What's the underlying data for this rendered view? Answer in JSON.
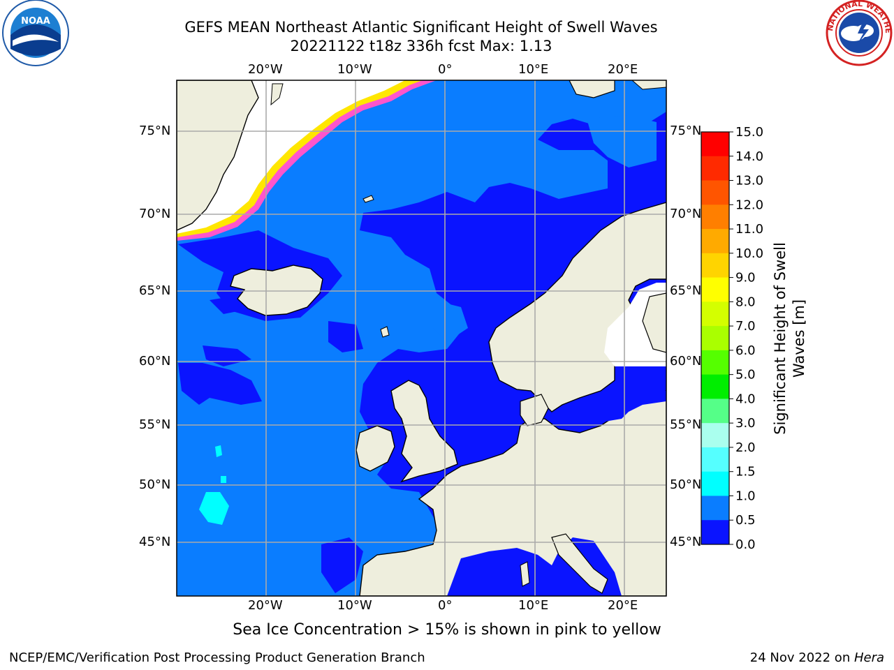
{
  "header": {
    "title_line1": "GEFS MEAN Northeast Atlantic Significant Height of Swell Waves",
    "title_line2": "20221122 t18z 336h fcst   Max: 1.13",
    "left_logo": "noara-logo",
    "right_logo": "nws-logo",
    "noaa_logo_text": "NOAA",
    "nws_logo_text": "NATIONAL WEATHER SERVICE"
  },
  "map": {
    "lon_labels_top": [
      "20°W",
      "10°W",
      "0°",
      "10°E",
      "20°E"
    ],
    "lon_labels_bottom": [
      "20°W",
      "10°W",
      "0°",
      "10°E",
      "20°E"
    ],
    "lat_labels_left": [
      "75°N",
      "70°N",
      "65°N",
      "60°N",
      "55°N",
      "50°N",
      "45°N"
    ],
    "lat_labels_right": [
      "75°N",
      "70°N",
      "65°N",
      "60°N",
      "55°N",
      "50°N",
      "45°N"
    ],
    "colors": {
      "ocean_low": "#0a14ff",
      "ocean_mid": "#0a7dff",
      "ocean_high": "#00ffff",
      "land": "#eeeedd",
      "ice_white": "#ffffff",
      "ice_pink": "#ff55cc",
      "ice_yellow": "#ffe600",
      "grid": "#aaaaaa"
    }
  },
  "colorbar": {
    "label": "Significant Height of Swell Waves [m]",
    "ticks": [
      "15.0",
      "14.0",
      "13.0",
      "12.0",
      "11.0",
      "10.0",
      "9.0",
      "8.0",
      "7.0",
      "6.0",
      "5.0",
      "4.0",
      "3.0",
      "2.0",
      "1.5",
      "1.0",
      "0.5",
      "0.0"
    ],
    "colors": [
      "#ff0000",
      "#ff2a00",
      "#ff5500",
      "#ff7f00",
      "#ffaa00",
      "#ffd400",
      "#ffff00",
      "#d4ff00",
      "#aaff00",
      "#55ff00",
      "#00ee00",
      "#55ff88",
      "#aaffee",
      "#55ffff",
      "#00ffff",
      "#0a7dff",
      "#0a14ff"
    ]
  },
  "footer": {
    "sea_ice_note": "Sea Ice Concentration > 15% is shown in pink to yellow",
    "left": "NCEP/EMC/Verification Post Processing Product Generation Branch",
    "right_date": "24 Nov 2022 on ",
    "right_host": "Hera"
  }
}
